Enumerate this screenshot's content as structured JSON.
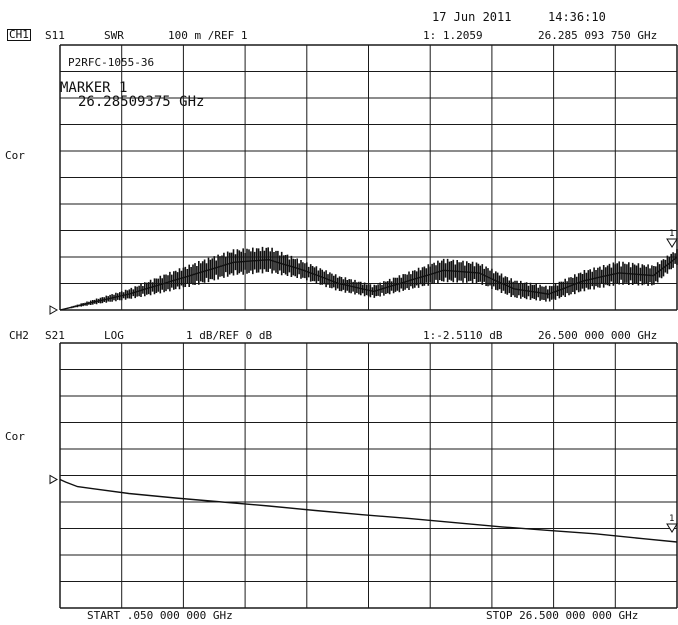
{
  "header": {
    "date": "17 Jun 2011",
    "time": "14:36:10"
  },
  "chart_data": [
    {
      "type": "line",
      "title": "",
      "channel": "CH1",
      "parameter": "S11",
      "format": "SWR",
      "scale_ref": "100 m /REF 1",
      "marker_readout": "1: 1.2059",
      "marker_frequency": "26.285 093 750 GHz",
      "side_label": "Cor",
      "annotation_name": "P2RFC-1055-36",
      "annotation_marker_title": "MARKER 1",
      "annotation_marker_value": "26.28509375 GHz",
      "marker_number": "1",
      "x_unit": "GHz",
      "xlim": [
        0.05,
        26.5
      ],
      "ylim": [
        1.0,
        2.0
      ],
      "grid": true,
      "series": [
        {
          "x": [
            0.05,
            1.5,
            3,
            4.5,
            6,
            7.5,
            9,
            10.5,
            12,
            13.5,
            15,
            16.5,
            18,
            19.5,
            21,
            22.5,
            24,
            25.5,
            26.5
          ],
          "y": [
            1.0,
            1.03,
            1.06,
            1.1,
            1.14,
            1.18,
            1.19,
            1.15,
            1.1,
            1.07,
            1.11,
            1.15,
            1.14,
            1.08,
            1.06,
            1.11,
            1.14,
            1.13,
            1.2
          ],
          "ripple": [
            0.0,
            0.02,
            0.04,
            0.07,
            0.09,
            0.1,
            0.1,
            0.07,
            0.06,
            0.05,
            0.07,
            0.09,
            0.08,
            0.07,
            0.06,
            0.08,
            0.09,
            0.08,
            0.06
          ]
        }
      ]
    },
    {
      "type": "line",
      "title": "",
      "channel": "CH2",
      "parameter": "S21",
      "format": "LOG",
      "scale_ref": "1 dB/REF 0 dB",
      "marker_readout": "1:-2.5110 dB",
      "marker_frequency": "26.500 000 000 GHz",
      "side_label": "Cor",
      "marker_number": "1",
      "x_unit": "GHz",
      "xlim": [
        0.05,
        26.5
      ],
      "ylim": [
        -5,
        5
      ],
      "grid": true,
      "series": [
        {
          "x": [
            0.05,
            0.3,
            0.8,
            1.5,
            3,
            5,
            7,
            9,
            11,
            13,
            15,
            17,
            19,
            21,
            23,
            25,
            26.5
          ],
          "y": [
            -0.15,
            -0.25,
            -0.42,
            -0.5,
            -0.68,
            -0.85,
            -1.0,
            -1.15,
            -1.32,
            -1.48,
            -1.62,
            -1.78,
            -1.94,
            -2.07,
            -2.2,
            -2.38,
            -2.51
          ]
        }
      ]
    }
  ],
  "footer": {
    "start": "START .050 000 000 GHz",
    "stop": "STOP 26.500 000 000 GHz"
  }
}
